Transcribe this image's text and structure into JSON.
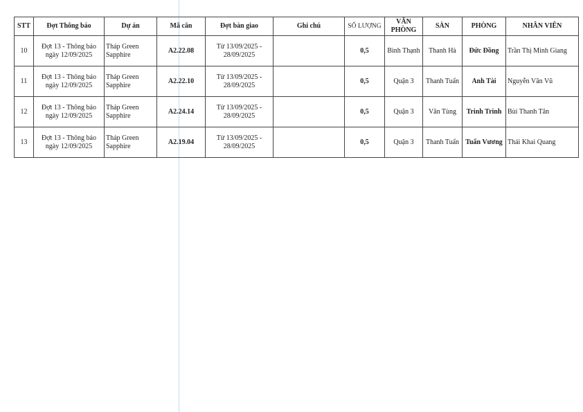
{
  "table": {
    "headers": [
      "STT",
      "Đợt Thông báo",
      "Dự án",
      "Mã căn",
      "Đợt bàn giao",
      "Ghi chú",
      "SỐ LƯỢNG",
      "VĂN PHÒNG",
      "SÀN",
      "PHÒNG",
      "NHÂN VIÊN"
    ],
    "rows": [
      {
        "stt": "10",
        "dot_line1": "Đợt 13 - Thông báo",
        "dot_line2": "ngày 12/09/2025",
        "du_an_line1": "Tháp Green",
        "du_an_line2": "Sapphire",
        "ma_can": "A2.22.08",
        "ban_giao_line1": "Từ 13/09/2025 -",
        "ban_giao_line2": "28/09/2025",
        "ghi_chu": "",
        "so_luong": "0,5",
        "van_phong": "Bình Thạnh",
        "san": "Thanh Hà",
        "phong": "Đức Đồng",
        "nhan_vien": "Trần Thị Minh Giang"
      },
      {
        "stt": "11",
        "dot_line1": "Đợt 13 - Thông báo",
        "dot_line2": "ngày 12/09/2025",
        "du_an_line1": "Tháp Green",
        "du_an_line2": "Sapphire",
        "ma_can": "A2.22.10",
        "ban_giao_line1": "Từ 13/09/2025 -",
        "ban_giao_line2": "28/09/2025",
        "ghi_chu": "",
        "so_luong": "0,5",
        "van_phong": "Quận 3",
        "san": "Thanh Tuấn",
        "phong": "Anh Tài",
        "nhan_vien": "Nguyễn Văn Vũ"
      },
      {
        "stt": "12",
        "dot_line1": "Đợt 13 - Thông báo",
        "dot_line2": "ngày 12/09/2025",
        "du_an_line1": "Tháp Green",
        "du_an_line2": "Sapphire",
        "ma_can": "A2.24.14",
        "ban_giao_line1": "Từ 13/09/2025 -",
        "ban_giao_line2": "28/09/2025",
        "ghi_chu": "",
        "so_luong": "0,5",
        "van_phong": "Quận 3",
        "san": "Văn Tùng",
        "phong": "Trinh Trinh",
        "nhan_vien": "Bùi Thanh Tân"
      },
      {
        "stt": "13",
        "dot_line1": "Đợt 13 - Thông báo",
        "dot_line2": "ngày 12/09/2025",
        "du_an_line1": "Tháp Green",
        "du_an_line2": "Sapphire",
        "ma_can": "A2.19.04",
        "ban_giao_line1": "Từ 13/09/2025 -",
        "ban_giao_line2": "28/09/2025",
        "ghi_chu": "",
        "so_luong": "0,5",
        "van_phong": "Quận 3",
        "san": "Thanh Tuấn",
        "phong": "Tuấn Vương",
        "nhan_vien": "Thái Khai Quang"
      }
    ]
  }
}
